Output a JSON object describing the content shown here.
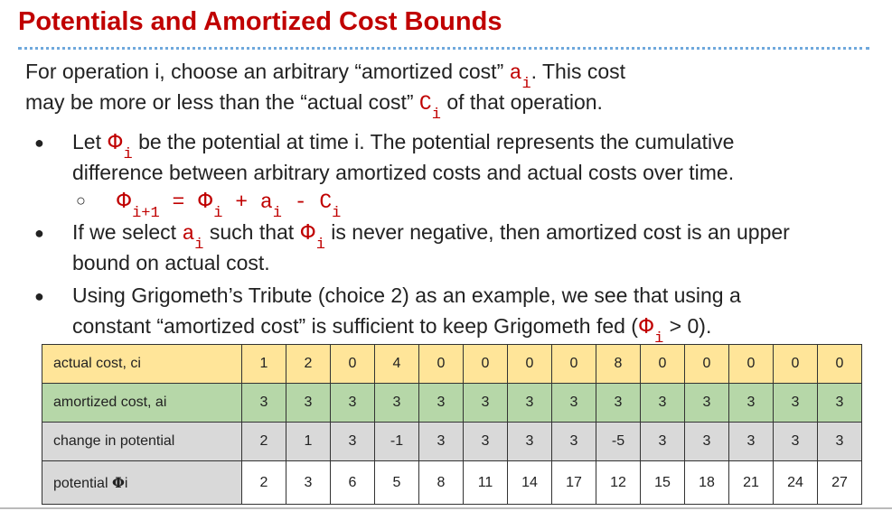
{
  "title": "Potentials and Amortized Cost Bounds",
  "intro": {
    "l1_a": "For operation i, choose an arbitrary “amortized cost” ",
    "a": "a",
    "i": "i",
    "l1_b": ". This cost",
    "l2_a": "may be more or less than the “actual cost” ",
    "c": "C",
    "l2_b": " of that operation."
  },
  "bullets": {
    "b1_a": "Let ",
    "phi": "Φ",
    "b1_b": " be the potential at time i. The potential represents the cumulative",
    "b1_c": "difference between arbitrary amortized costs and actual costs over time.",
    "eq_lhs_sub": "i+1",
    "eq_eq": " = ",
    "eq_plus": " + ",
    "eq_minus": " - ",
    "b2_a": "If we select ",
    "b2_b": " such that ",
    "b2_c": " is never negative, then amortized cost is an upper",
    "b2_d": "bound on actual cost.",
    "b3_a": "Using Grigometh’s Tribute (choice 2) as an example, we see that using  a",
    "b3_b": "constant “amortized cost” is sufficient to keep Grigometh fed (",
    "b3_c": " > 0)."
  },
  "table": {
    "rows": [
      {
        "label": "actual cost, ci",
        "values": [
          "1",
          "2",
          "0",
          "4",
          "0",
          "0",
          "0",
          "0",
          "8",
          "0",
          "0",
          "0",
          "0",
          "0"
        ]
      },
      {
        "label": "amortized cost, ai",
        "values": [
          "3",
          "3",
          "3",
          "3",
          "3",
          "3",
          "3",
          "3",
          "3",
          "3",
          "3",
          "3",
          "3",
          "3"
        ]
      },
      {
        "label": "change in potential",
        "values": [
          "2",
          "1",
          "3",
          "-1",
          "3",
          "3",
          "3",
          "3",
          "-5",
          "3",
          "3",
          "3",
          "3",
          "3"
        ]
      },
      {
        "label_a": "potential ",
        "label_phi": "Φ",
        "label_b": "i",
        "values": [
          "2",
          "3",
          "6",
          "5",
          "8",
          "11",
          "14",
          "17",
          "12",
          "15",
          "18",
          "21",
          "24",
          "27"
        ]
      }
    ]
  },
  "colors": {
    "title": "#c00000",
    "actual_row": "#ffe599",
    "amortized_row": "#b6d7a8",
    "change_row": "#d9d9d9",
    "divider": "#6fa8dc"
  }
}
